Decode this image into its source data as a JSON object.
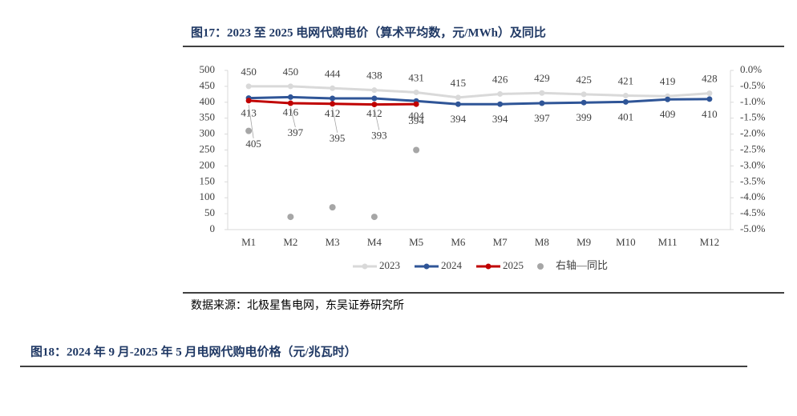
{
  "chart_data": {
    "type": "line",
    "title": "图17：2023 至 2025 电网代购电价（算术平均数，元/MWh）及同比",
    "categories": [
      "M1",
      "M2",
      "M3",
      "M4",
      "M5",
      "M6",
      "M7",
      "M8",
      "M9",
      "M10",
      "M11",
      "M12"
    ],
    "series": [
      {
        "name": "2023",
        "color": "#d9d9d9",
        "values": [
          450,
          450,
          444,
          438,
          431,
          415,
          426,
          429,
          425,
          421,
          419,
          428
        ]
      },
      {
        "name": "2024",
        "color": "#2f5597",
        "values": [
          413,
          416,
          412,
          412,
          404,
          394,
          394,
          397,
          399,
          401,
          409,
          410
        ]
      },
      {
        "name": "2025",
        "color": "#c00000",
        "values": [
          405,
          397,
          395,
          393,
          394,
          null,
          null,
          null,
          null,
          null,
          null,
          null
        ]
      },
      {
        "name": "右轴—同比",
        "color": "#a6a6a6",
        "type": "scatter",
        "axis": "y2",
        "values": [
          -1.9,
          -4.6,
          -4.3,
          -4.6,
          -2.5,
          null,
          null,
          null,
          null,
          null,
          null,
          null
        ]
      }
    ],
    "ylim": [
      0,
      500
    ],
    "yticks": [
      0,
      50,
      100,
      150,
      200,
      250,
      300,
      350,
      400,
      450,
      500
    ],
    "y2lim": [
      -5,
      0
    ],
    "y2ticks": [
      {
        "value": 0,
        "label": "0.0%"
      },
      {
        "value": -0.5,
        "label": "-0.5%"
      },
      {
        "value": -1,
        "label": "-1.0%"
      },
      {
        "value": -1.5,
        "label": "-1.5%"
      },
      {
        "value": -2,
        "label": "-2.0%"
      },
      {
        "value": -2.5,
        "label": "-2.5%"
      },
      {
        "value": -3,
        "label": "-3.0%"
      },
      {
        "value": -3.5,
        "label": "-3.5%"
      },
      {
        "value": -4,
        "label": "-4.0%"
      },
      {
        "value": -4.5,
        "label": "-4.5%"
      },
      {
        "value": -5,
        "label": "-5.0%"
      }
    ],
    "legend": "bottom"
  },
  "source": "数据来源：北极星售电网，东吴证券研究所",
  "next_figure": {
    "title": "图18：2024 年 9 月-2025 年 5 月电网代购电价格（元/兆瓦时）"
  }
}
